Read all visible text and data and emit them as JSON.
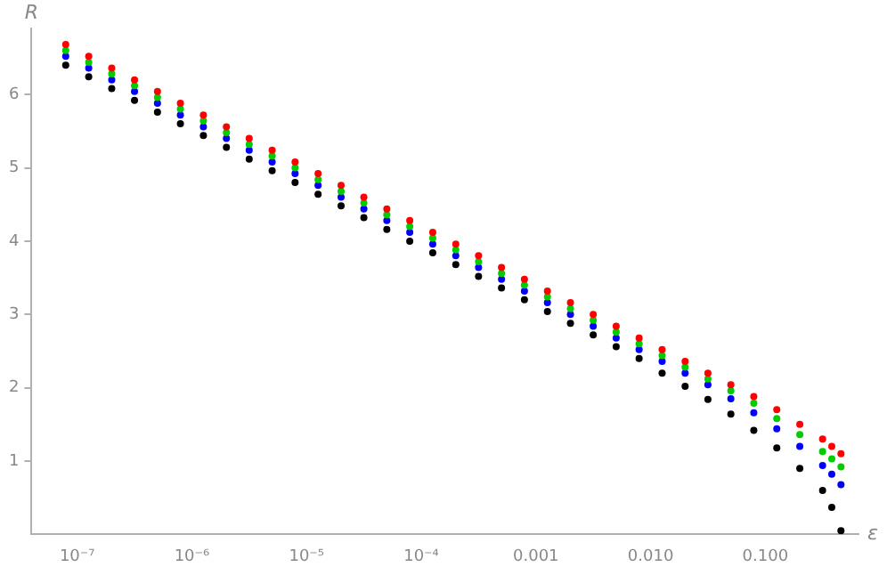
{
  "chart_data": {
    "type": "scatter",
    "xlabel": "ε",
    "ylabel": "R",
    "log": "x",
    "marker": "circle",
    "grid": false,
    "legend": false,
    "x": [
      7.94e-08,
      1.26e-07,
      2e-07,
      3.16e-07,
      5.01e-07,
      7.94e-07,
      1.26e-06,
      2e-06,
      3.16e-06,
      5.01e-06,
      7.94e-06,
      1.26e-05,
      2e-05,
      3.16e-05,
      5.01e-05,
      7.94e-05,
      0.000126,
      0.0002,
      0.000316,
      0.000501,
      0.000794,
      0.00126,
      0.002,
      0.00316,
      0.00501,
      0.00794,
      0.0126,
      0.02,
      0.0316,
      0.0501,
      0.0794,
      0.126,
      0.2,
      0.316,
      0.38,
      0.457
    ],
    "xlim": [
      4e-08,
      0.65
    ],
    "xticks": [
      {
        "value": 1e-07,
        "label": "10⁻⁷"
      },
      {
        "value": 1e-06,
        "label": "10⁻⁶"
      },
      {
        "value": 1e-05,
        "label": "10⁻⁵"
      },
      {
        "value": 0.0001,
        "label": "10⁻⁴"
      },
      {
        "value": 0.001,
        "label": "0.001"
      },
      {
        "value": 0.01,
        "label": "0.010"
      },
      {
        "value": 0.1,
        "label": "0.100"
      }
    ],
    "ylim": [
      0,
      6.9
    ],
    "yticks": [
      1,
      2,
      3,
      4,
      5,
      6
    ],
    "series": [
      {
        "color": "#ff0000",
        "values": [
          6.68,
          6.52,
          6.36,
          6.2,
          6.04,
          5.88,
          5.72,
          5.56,
          5.4,
          5.24,
          5.08,
          4.92,
          4.76,
          4.6,
          4.44,
          4.28,
          4.12,
          3.96,
          3.8,
          3.64,
          3.48,
          3.32,
          3.16,
          3.0,
          2.84,
          2.68,
          2.52,
          2.36,
          2.2,
          2.04,
          1.88,
          1.7,
          1.5,
          1.3,
          1.2,
          1.1
        ]
      },
      {
        "color": "#00cc00",
        "values": [
          6.6,
          6.44,
          6.28,
          6.12,
          5.96,
          5.8,
          5.64,
          5.48,
          5.32,
          5.16,
          5.0,
          4.84,
          4.68,
          4.52,
          4.36,
          4.2,
          4.04,
          3.88,
          3.72,
          3.56,
          3.4,
          3.24,
          3.08,
          2.92,
          2.76,
          2.6,
          2.44,
          2.28,
          2.12,
          1.96,
          1.79,
          1.58,
          1.36,
          1.13,
          1.03,
          0.92
        ]
      },
      {
        "color": "#0000ff",
        "values": [
          6.52,
          6.36,
          6.2,
          6.04,
          5.88,
          5.72,
          5.56,
          5.4,
          5.24,
          5.08,
          4.92,
          4.76,
          4.6,
          4.44,
          4.28,
          4.12,
          3.96,
          3.8,
          3.64,
          3.48,
          3.32,
          3.16,
          3.0,
          2.84,
          2.68,
          2.52,
          2.36,
          2.2,
          2.04,
          1.85,
          1.66,
          1.44,
          1.2,
          0.94,
          0.82,
          0.68
        ]
      },
      {
        "color": "#000000",
        "values": [
          6.4,
          6.24,
          6.08,
          5.92,
          5.76,
          5.6,
          5.44,
          5.28,
          5.12,
          4.96,
          4.8,
          4.64,
          4.48,
          4.32,
          4.16,
          4.0,
          3.84,
          3.68,
          3.52,
          3.36,
          3.2,
          3.04,
          2.88,
          2.72,
          2.56,
          2.4,
          2.2,
          2.02,
          1.84,
          1.64,
          1.42,
          1.18,
          0.9,
          0.6,
          0.37,
          0.05
        ]
      }
    ]
  }
}
